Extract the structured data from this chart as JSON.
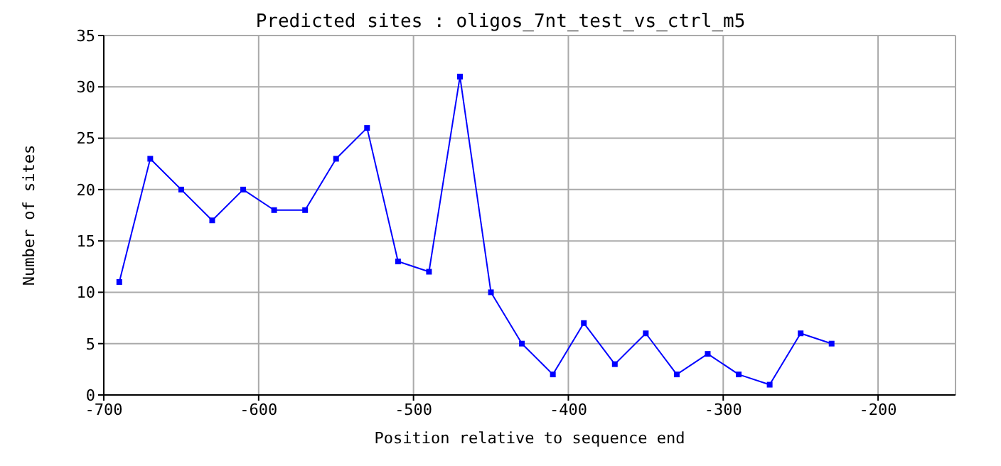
{
  "chart_data": {
    "type": "line",
    "title": "Predicted sites : oligos_7nt_test_vs_ctrl_m5",
    "xlabel": "Position relative to sequence end",
    "ylabel": "Number of sites",
    "x": [
      -690,
      -670,
      -650,
      -630,
      -610,
      -590,
      -570,
      -550,
      -530,
      -510,
      -490,
      -470,
      -450,
      -430,
      -410,
      -390,
      -370,
      -350,
      -330,
      -310,
      -290,
      -270,
      -250,
      -230
    ],
    "series": [
      {
        "color": "#0000ff",
        "values": [
          11,
          23,
          20,
          17,
          20,
          18,
          18,
          23,
          26,
          13,
          12,
          31,
          10,
          5,
          2,
          7,
          3,
          6,
          2,
          4,
          2,
          1,
          6,
          5
        ]
      }
    ],
    "xlim": [
      -700,
      -150
    ],
    "xticks": [
      -700,
      -600,
      -500,
      -400,
      -300,
      -200
    ],
    "ylim": [
      0,
      35
    ],
    "yticks": [
      0,
      5,
      10,
      15,
      20,
      25,
      30,
      35
    ],
    "grid": true,
    "marker": "square",
    "line_style": "solid"
  }
}
